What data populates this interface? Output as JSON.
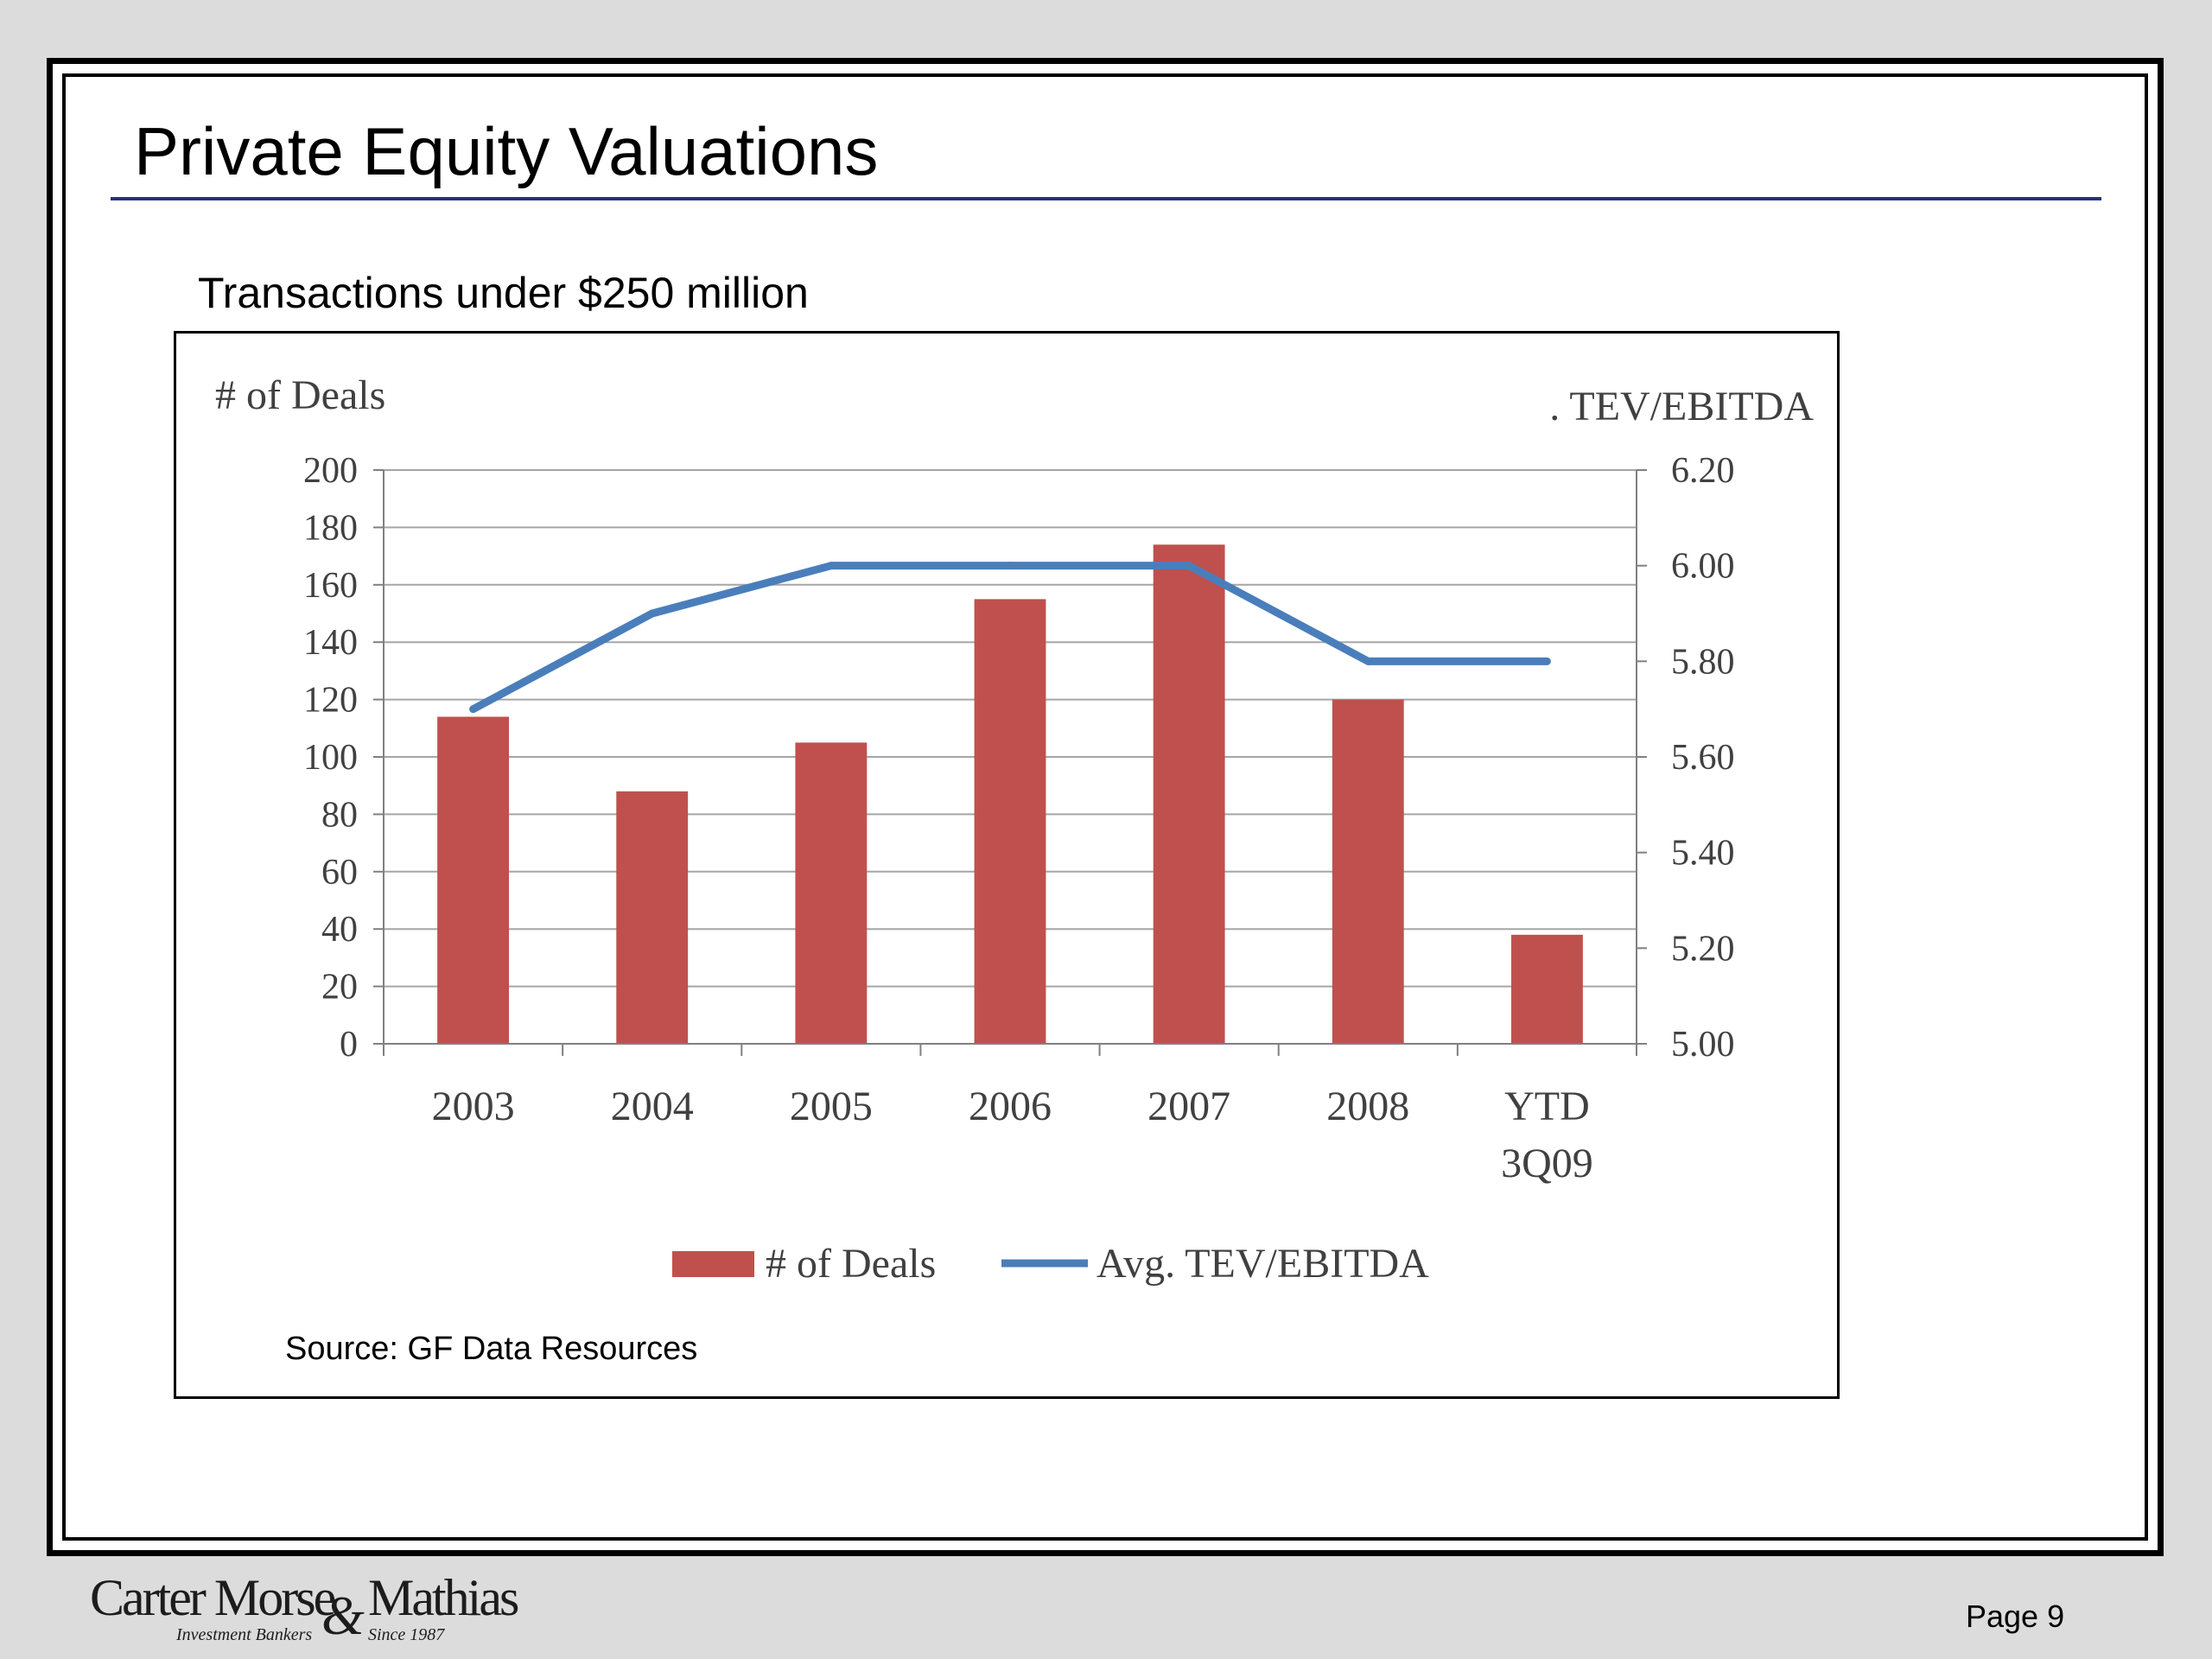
{
  "slide": {
    "title": "Private Equity Valuations",
    "subtitle": "Transactions under $250 million",
    "source": "Source: GF Data Resources",
    "page": "Page 9",
    "logo": {
      "name_left": "Carter Morse",
      "ampersand": "&",
      "name_right": "Mathias",
      "tagline_left": "Investment Bankers",
      "tagline_right": "Since 1987"
    }
  },
  "colors": {
    "bar": "#c0504d",
    "line": "#4a7ebb",
    "grid": "#a6a6a6",
    "title_rule": "#2b2f7e"
  },
  "chart_data": {
    "type": "bar",
    "categories": [
      "2003",
      "2004",
      "2005",
      "2006",
      "2007",
      "2008",
      "YTD 3Q09"
    ],
    "category_lines": [
      [
        "2003"
      ],
      [
        "2004"
      ],
      [
        "2005"
      ],
      [
        "2006"
      ],
      [
        "2007"
      ],
      [
        "2008"
      ],
      [
        "YTD",
        "3Q09"
      ]
    ],
    "y_left": {
      "label": "# of Deals",
      "range": [
        0,
        200
      ],
      "ticks": [
        "0",
        "20",
        "40",
        "60",
        "80",
        "100",
        "120",
        "140",
        "160",
        "180",
        "200"
      ]
    },
    "y_right": {
      "label": ". TEV/EBITDA",
      "range": [
        5.0,
        6.2
      ],
      "ticks": [
        "5.00",
        "5.20",
        "5.40",
        "5.60",
        "5.80",
        "6.00",
        "6.20"
      ]
    },
    "series": [
      {
        "name": "# of Deals",
        "type": "bar",
        "axis": "left",
        "values": [
          114,
          88,
          105,
          155,
          174,
          120,
          38
        ]
      },
      {
        "name": "Avg. TEV/EBITDA",
        "type": "line",
        "axis": "right",
        "values": [
          5.7,
          5.9,
          6.0,
          6.0,
          6.0,
          5.8,
          5.8
        ]
      }
    ],
    "grid": true,
    "legend": "bottom"
  }
}
